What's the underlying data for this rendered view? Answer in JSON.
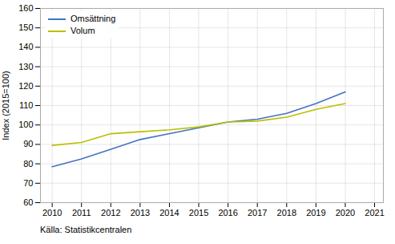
{
  "chart_data": {
    "type": "line",
    "x": [
      2010,
      2011,
      2012,
      2013,
      2014,
      2015,
      2016,
      2017,
      2018,
      2019,
      2020
    ],
    "series": [
      {
        "name": "Omsättning",
        "color": "#4472C4",
        "values": [
          78.5,
          82.5,
          87.5,
          92.5,
          95.5,
          98.5,
          101.5,
          103.0,
          106.0,
          111.0,
          117.0
        ]
      },
      {
        "name": "Volum",
        "color": "#BBBF00",
        "values": [
          89.5,
          91.0,
          95.5,
          96.5,
          97.5,
          99.0,
          101.5,
          102.0,
          104.0,
          108.0,
          111.0
        ]
      }
    ],
    "ylabel": "Index (2015=100)",
    "caption": "Källa: Statistikcentralen",
    "xlim": [
      2009.6,
      2021.3
    ],
    "xticks": [
      2010,
      2011,
      2012,
      2013,
      2014,
      2015,
      2016,
      2017,
      2018,
      2019,
      2020,
      2021
    ],
    "ylim": [
      60,
      160
    ],
    "yticks": [
      60,
      70,
      80,
      90,
      100,
      110,
      120,
      130,
      140,
      150,
      160
    ],
    "grid": true,
    "legend": "upper left"
  }
}
